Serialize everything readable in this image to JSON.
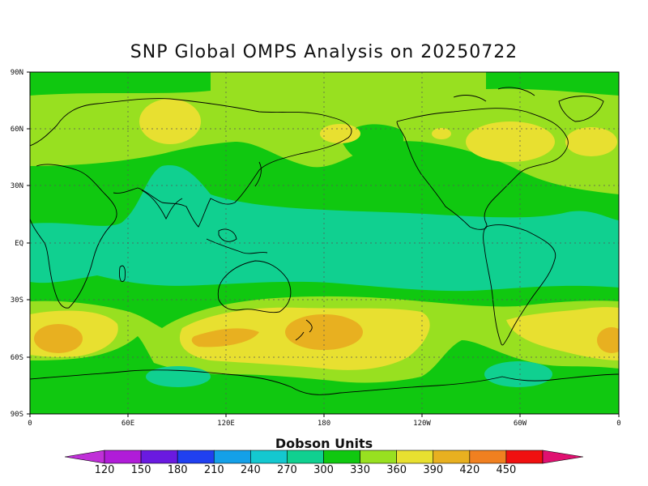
{
  "title": "SNP Global OMPS Analysis on 20250722",
  "map": {
    "lon_labels": [
      "0",
      "60E",
      "120E",
      "180",
      "120W",
      "60W",
      "0"
    ],
    "lat_labels": [
      "90N",
      "60N",
      "30N",
      "EQ",
      "30S",
      "60S",
      "90S"
    ]
  },
  "colorbar": {
    "title": "Dobson Units",
    "ticks": [
      "120",
      "150",
      "180",
      "210",
      "240",
      "270",
      "300",
      "330",
      "360",
      "390",
      "420",
      "450"
    ],
    "colors": [
      "#b01cd8",
      "#6a1ae0",
      "#2040f0",
      "#14a0e8",
      "#14c8d0",
      "#10d090",
      "#10c810",
      "#98e020",
      "#e8e030",
      "#e8b020",
      "#f08020",
      "#f01010"
    ],
    "under_color": "#c030d8",
    "over_color": "#e01070"
  },
  "field_colors": {
    "c300": "#10c810",
    "c330": "#98e020",
    "c360": "#e8e030",
    "c390": "#e8b020",
    "c270": "#10d090",
    "c240": "#14c8d0"
  }
}
